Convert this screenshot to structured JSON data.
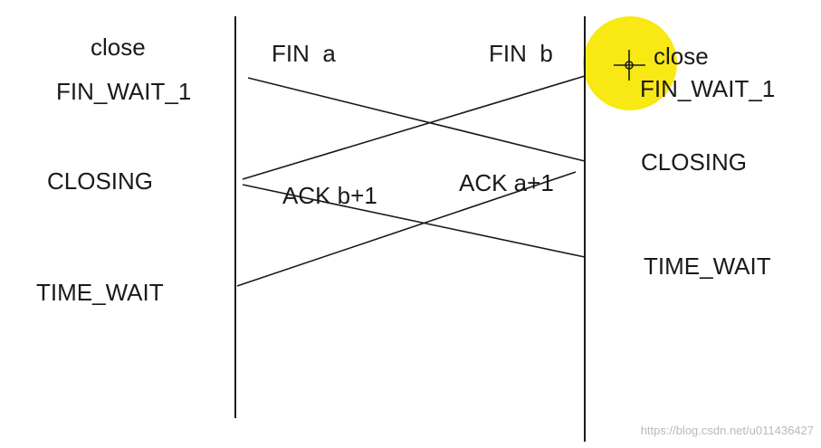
{
  "left_states": {
    "close": "close",
    "fin_wait_1": "FIN_WAIT_1",
    "closing": "CLOSING",
    "time_wait": "TIME_WAIT"
  },
  "right_states": {
    "close": "close",
    "fin_wait_1": "FIN_WAIT_1",
    "closing": "CLOSING",
    "time_wait": "TIME_WAIT"
  },
  "messages": {
    "fin_a": "FIN  a",
    "fin_b": "FIN  b",
    "ack_b": "ACK b+1",
    "ack_a": "ACK a+1"
  },
  "cursor_highlight_color": "#f7e600",
  "line_color": "#1a1a1a",
  "watermark": "https://blog.csdn.net/u011436427"
}
